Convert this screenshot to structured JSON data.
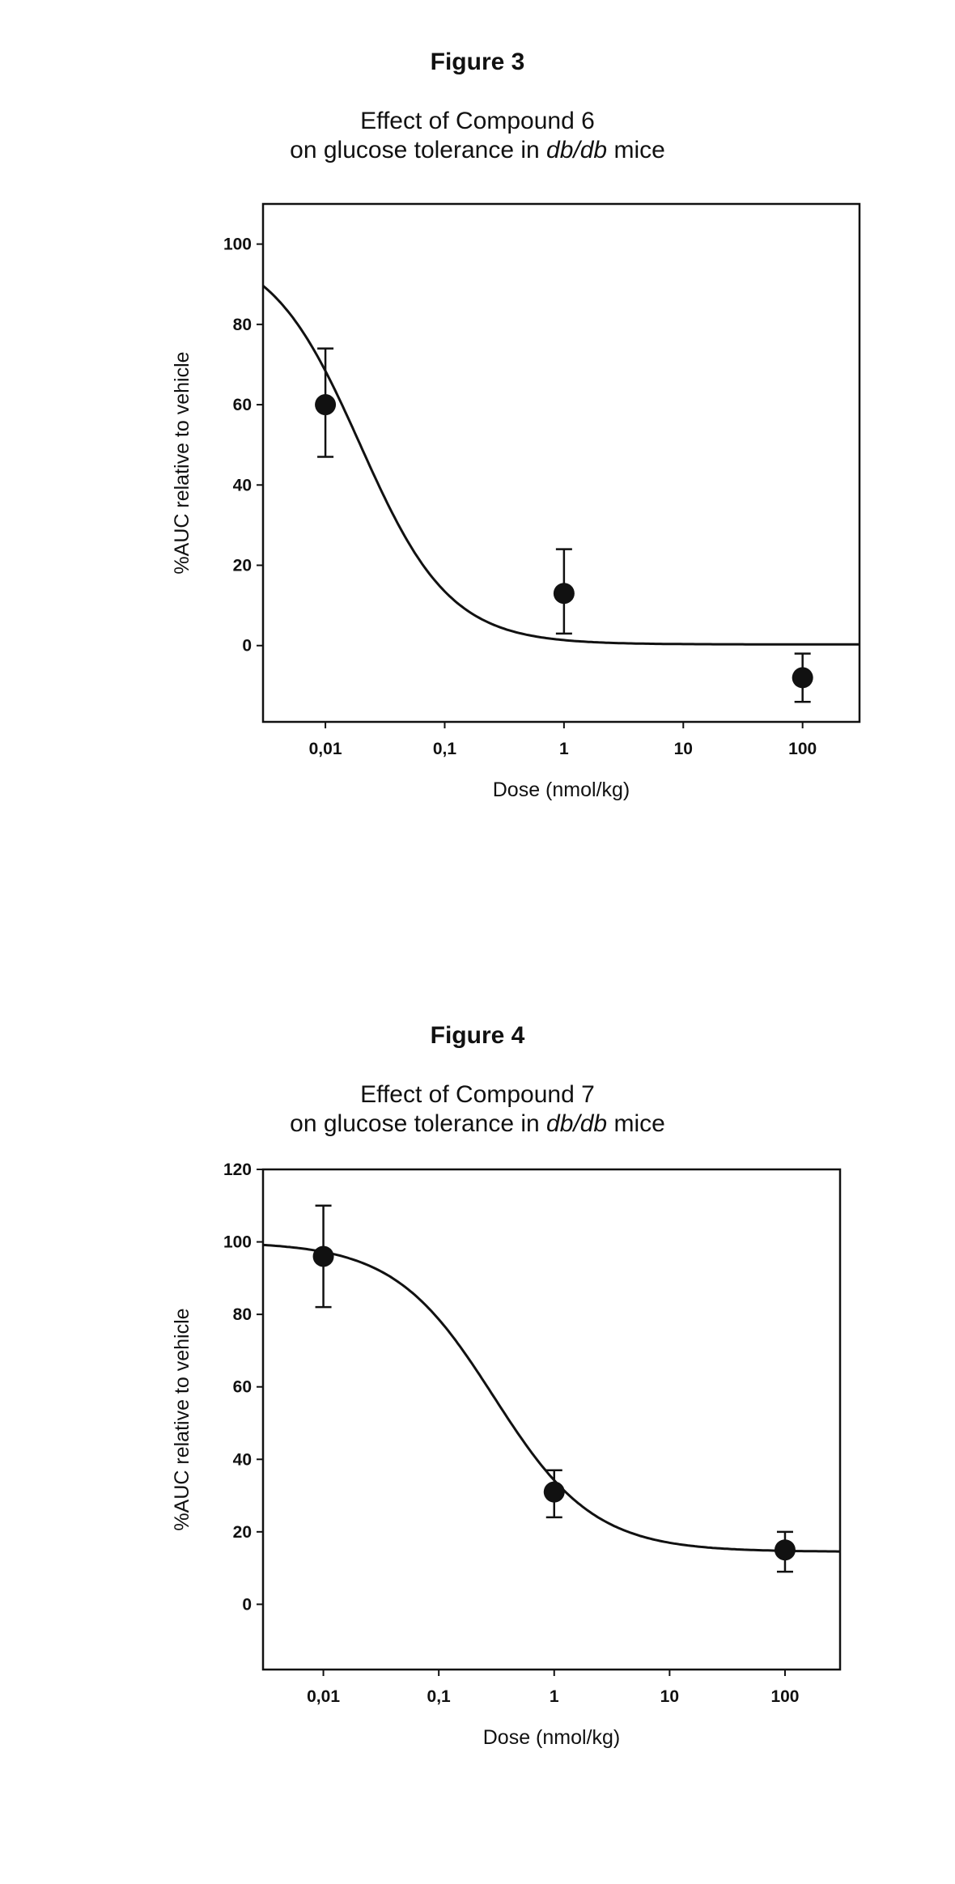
{
  "figures": [
    {
      "label": "Figure 3",
      "title_line1": "Effect of Compound 6",
      "title_line2_pre": "on glucose tolerance in ",
      "title_line2_em": "db/db",
      "title_line2_post": " mice"
    },
    {
      "label": "Figure 4",
      "title_line1": "Effect of Compound 7",
      "title_line2_pre": "on glucose tolerance in ",
      "title_line2_em": "db/db",
      "title_line2_post": " mice"
    }
  ],
  "chart_data": [
    {
      "type": "scatter",
      "title": "Effect of Compound 6 on glucose tolerance in db/db mice",
      "xlabel": "Dose (nmol/kg)",
      "ylabel": "%AUC relative to vehicle",
      "xscale": "log",
      "xlim": [
        0.003,
        300
      ],
      "ylim": [
        -19,
        110
      ],
      "xticks": [
        0.01,
        0.1,
        1,
        10,
        100
      ],
      "xtick_labels": [
        "0,01",
        "0,1",
        "1",
        "10",
        "100"
      ],
      "yticks": [
        0,
        20,
        40,
        60,
        80,
        100
      ],
      "ytick_labels": [
        "0",
        "20",
        "40",
        "60",
        "80",
        "100"
      ],
      "points": [
        {
          "x": 0.01,
          "y": 60,
          "err_low": 47,
          "err_high": 74
        },
        {
          "x": 1,
          "y": 13,
          "err_low": 3,
          "err_high": 24
        },
        {
          "x": 100,
          "y": -8,
          "err_low": -14,
          "err_high": -2
        }
      ],
      "fit": {
        "type": "sigmoid",
        "top": 100,
        "bottom": 0.3,
        "ec50": 0.0195,
        "hill": 1.15
      },
      "grid": false,
      "legend": "none"
    },
    {
      "type": "scatter",
      "title": "Effect of Compound 7 on glucose tolerance in db/db mice",
      "xlabel": "Dose (nmol/kg)",
      "ylabel": "%AUC relative to vehicle",
      "xscale": "log",
      "xlim": [
        0.003,
        300
      ],
      "ylim": [
        -18,
        120
      ],
      "xticks": [
        0.01,
        0.1,
        1,
        10,
        100
      ],
      "xtick_labels": [
        "0,01",
        "0,1",
        "1",
        "10",
        "100"
      ],
      "yticks": [
        0,
        20,
        40,
        60,
        80,
        100,
        120
      ],
      "ytick_labels": [
        "0",
        "20",
        "40",
        "60",
        "80",
        "100",
        "120"
      ],
      "points": [
        {
          "x": 0.01,
          "y": 96,
          "err_low": 82,
          "err_high": 110
        },
        {
          "x": 1,
          "y": 31,
          "err_low": 24,
          "err_high": 37
        },
        {
          "x": 100,
          "y": 15,
          "err_low": 9,
          "err_high": 20
        }
      ],
      "fit": {
        "type": "sigmoid",
        "top": 100,
        "bottom": 14.5,
        "ec50": 0.3,
        "hill": 1.0
      },
      "grid": false,
      "legend": "none"
    }
  ]
}
